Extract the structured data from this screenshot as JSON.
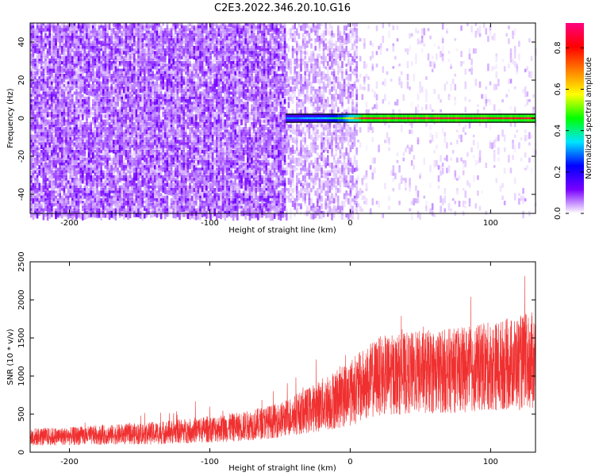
{
  "title": "C2E3.2022.346.20.10.G16",
  "chart_data": [
    {
      "type": "heatmap",
      "xlabel": "Height of straight line (km)",
      "ylabel": "Frequency (Hz)",
      "xlim": [
        -228,
        132
      ],
      "ylim": [
        -50,
        50
      ],
      "xticks": [
        -200,
        -100,
        0,
        100
      ],
      "xtick_labels": [
        "-200",
        "-100",
        "0",
        "100"
      ],
      "yticks": [
        -40,
        -20,
        0,
        20,
        40
      ],
      "ytick_labels": [
        "-40",
        "-20",
        "0",
        "20",
        "40"
      ],
      "colorbar": {
        "label": "Normalized spectral amplitude",
        "range": [
          0,
          0.92
        ],
        "ticks": [
          0,
          0.2,
          0.4,
          0.6,
          0.8
        ],
        "tick_labels": [
          "0.0",
          "0.2",
          "0.4",
          "0.6",
          "0.8"
        ],
        "colors": [
          "#ffffff",
          "#7a00ff",
          "#0000ff",
          "#00e5ff",
          "#00ff00",
          "#ffff00",
          "#ff8000",
          "#ff0000",
          "#ff0080"
        ]
      },
      "noise_regions": [
        {
          "x_from": -228,
          "x_to": -46,
          "amplitude": 0.08,
          "density": 0.85
        },
        {
          "x_from": -46,
          "x_to": 5,
          "amplitude": 0.05,
          "density": 0.45
        },
        {
          "x_from": 5,
          "x_to": 132,
          "amplitude": 0.03,
          "density": 0.08
        }
      ],
      "signal_band": {
        "frequency": 0,
        "half_width": 2,
        "x_start": -46,
        "x_end": 132,
        "amplitude_profile": [
          [
            -46,
            0.3
          ],
          [
            -20,
            0.35
          ],
          [
            -5,
            0.5
          ],
          [
            10,
            0.85
          ],
          [
            132,
            0.85
          ]
        ]
      }
    },
    {
      "type": "line",
      "xlabel": "Height of straight line (km)",
      "ylabel": "SNR (10 * v/v)",
      "xlim": [
        -228,
        132
      ],
      "ylim": [
        0,
        2500
      ],
      "xticks": [
        -200,
        -100,
        0,
        100
      ],
      "xtick_labels": [
        "-200",
        "-100",
        "0",
        "100"
      ],
      "yticks": [
        0,
        500,
        1000,
        1500,
        2000,
        2500
      ],
      "ytick_labels": [
        "0",
        "500",
        "1000",
        "1500",
        "2000",
        "2500"
      ],
      "color": "#f03030",
      "envelope": [
        {
          "x": -228,
          "mean": 200,
          "spread": 120
        },
        {
          "x": -200,
          "mean": 210,
          "spread": 120
        },
        {
          "x": -170,
          "mean": 230,
          "spread": 130
        },
        {
          "x": -140,
          "mean": 250,
          "spread": 150
        },
        {
          "x": -110,
          "mean": 290,
          "spread": 170
        },
        {
          "x": -80,
          "mean": 330,
          "spread": 190
        },
        {
          "x": -50,
          "mean": 420,
          "spread": 230
        },
        {
          "x": -30,
          "mean": 550,
          "spread": 300
        },
        {
          "x": -10,
          "mean": 700,
          "spread": 400
        },
        {
          "x": 10,
          "mean": 880,
          "spread": 480
        },
        {
          "x": 20,
          "mean": 1000,
          "spread": 520
        },
        {
          "x": 50,
          "mean": 1050,
          "spread": 550
        },
        {
          "x": 80,
          "mean": 1080,
          "spread": 560
        },
        {
          "x": 110,
          "mean": 1150,
          "spread": 600
        },
        {
          "x": 132,
          "mean": 1200,
          "spread": 650
        }
      ]
    }
  ]
}
